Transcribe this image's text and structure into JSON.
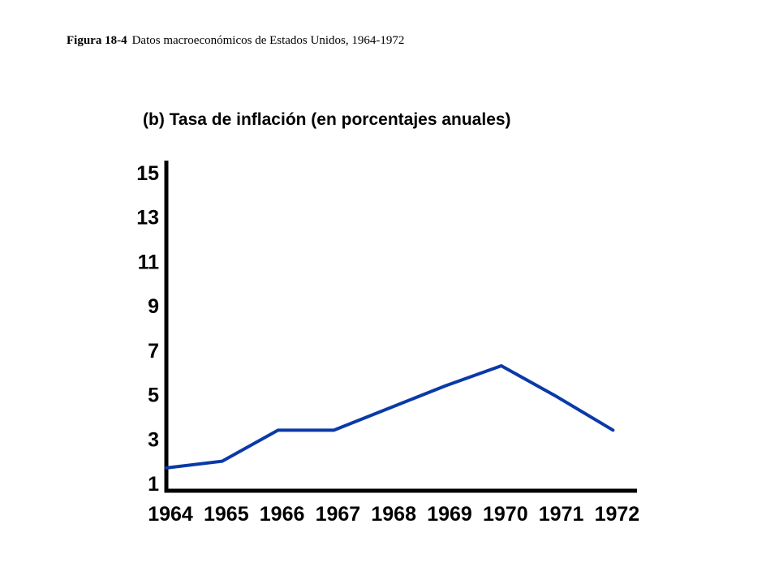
{
  "figure": {
    "number": "Figura 18-4",
    "caption": "Datos macroeconómicos de Estados Unidos, 1964-1972"
  },
  "colors": {
    "line": "#0a3aa8",
    "axis": "#000000"
  },
  "chart_data": {
    "type": "line",
    "title": "(b) Tasa de inflación (en porcentajes anuales)",
    "xlabel": "",
    "ylabel": "",
    "x": [
      "1964",
      "1965",
      "1966",
      "1967",
      "1968",
      "1969",
      "1970",
      "1971",
      "1972"
    ],
    "series": [
      {
        "values": [
          1.7,
          2.0,
          3.4,
          3.4,
          4.4,
          5.4,
          6.3,
          4.9,
          3.4
        ]
      }
    ],
    "ylim": [
      1,
      15
    ],
    "yticks": [
      1,
      3,
      5,
      7,
      9,
      11,
      13,
      15
    ],
    "grid": false,
    "legend": "none"
  }
}
